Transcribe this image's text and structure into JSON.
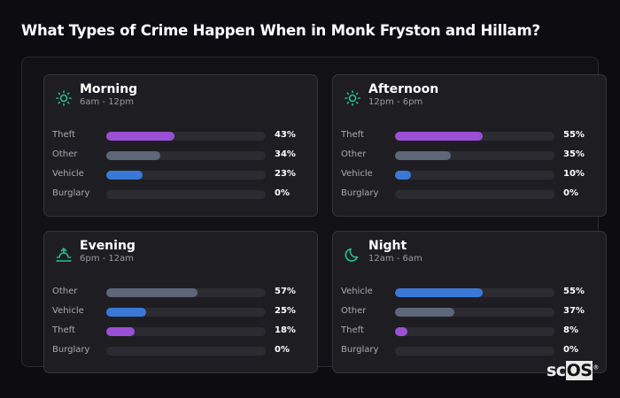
{
  "title": "What Types of Crime Happen When in Monk Fryston and Hillam?",
  "colors": {
    "Theft": "#9b4fd6",
    "Other": "#5d6778",
    "Vehicle": "#3a78d8",
    "Burglary": "#2b2b31",
    "icon": "#27c08a"
  },
  "periods": [
    {
      "name": "Morning",
      "range": "6am - 12pm",
      "icon": "sun-icon",
      "rows": [
        {
          "label": "Theft",
          "value": 43,
          "pct": "43%"
        },
        {
          "label": "Other",
          "value": 34,
          "pct": "34%"
        },
        {
          "label": "Vehicle",
          "value": 23,
          "pct": "23%"
        },
        {
          "label": "Burglary",
          "value": 0,
          "pct": "0%"
        }
      ]
    },
    {
      "name": "Afternoon",
      "range": "12pm - 6pm",
      "icon": "sun-icon",
      "rows": [
        {
          "label": "Theft",
          "value": 55,
          "pct": "55%"
        },
        {
          "label": "Other",
          "value": 35,
          "pct": "35%"
        },
        {
          "label": "Vehicle",
          "value": 10,
          "pct": "10%"
        },
        {
          "label": "Burglary",
          "value": 0,
          "pct": "0%"
        }
      ]
    },
    {
      "name": "Evening",
      "range": "6pm - 12am",
      "icon": "sunset-icon",
      "rows": [
        {
          "label": "Other",
          "value": 57,
          "pct": "57%"
        },
        {
          "label": "Vehicle",
          "value": 25,
          "pct": "25%"
        },
        {
          "label": "Theft",
          "value": 18,
          "pct": "18%"
        },
        {
          "label": "Burglary",
          "value": 0,
          "pct": "0%"
        }
      ]
    },
    {
      "name": "Night",
      "range": "12am - 6am",
      "icon": "moon-icon",
      "rows": [
        {
          "label": "Vehicle",
          "value": 55,
          "pct": "55%"
        },
        {
          "label": "Other",
          "value": 37,
          "pct": "37%"
        },
        {
          "label": "Theft",
          "value": 8,
          "pct": "8%"
        },
        {
          "label": "Burglary",
          "value": 0,
          "pct": "0%"
        }
      ]
    }
  ],
  "logo": {
    "text": "sc",
    "text2": "OS"
  }
}
